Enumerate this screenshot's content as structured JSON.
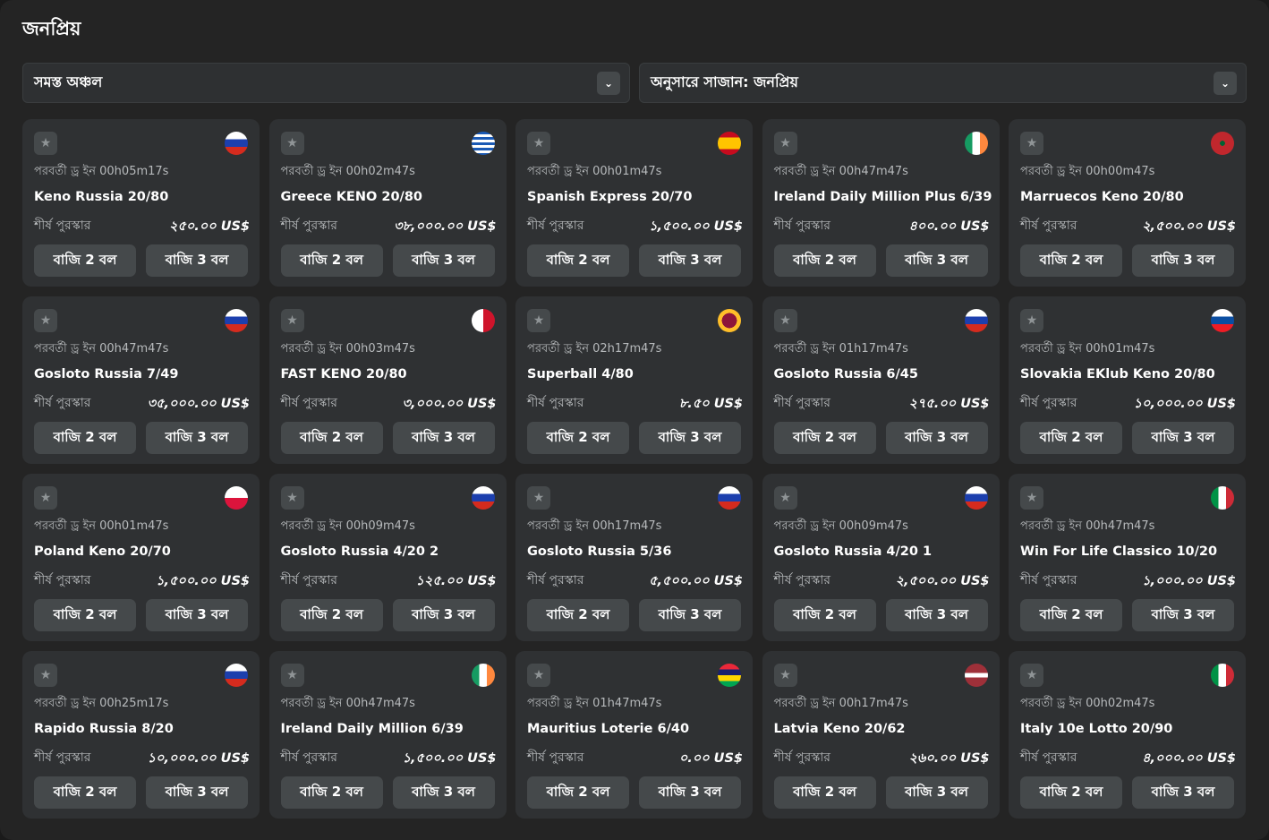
{
  "title": "জনপ্রিয়",
  "filters": {
    "region": "সমস্ত অঞ্চল",
    "sort": "অনুসারে সাজান: জনপ্রিয়"
  },
  "labels": {
    "next_draw": "পরবর্তী ড্র ইন",
    "top_prize": "শীর্ষ পুরস্কার",
    "bet2": "বাজি 2 বল",
    "bet3": "বাজি 3 বল"
  },
  "cards": [
    {
      "flag": "russia",
      "timer": "পরবর্তী ড্র ইন 00h05m17s",
      "name": "Keno Russia 20/80",
      "prize": "২৫০.০০ US$"
    },
    {
      "flag": "greece",
      "timer": "পরবর্তী ড্র ইন 00h02m47s",
      "name": "Greece KENO 20/80",
      "prize": "৩৮,০০০.০০ US$"
    },
    {
      "flag": "spain",
      "timer": "পরবর্তী ড্র ইন 00h01m47s",
      "name": "Spanish Express 20/70",
      "prize": "১,৫০০.০০ US$"
    },
    {
      "flag": "ireland",
      "timer": "পরবর্তী ড্র ইন 00h47m47s",
      "name": "Ireland Daily Million Plus 6/39",
      "prize": "৪০০.০০ US$"
    },
    {
      "flag": "morocco",
      "timer": "পরবর্তী ড্র ইন 00h00m47s",
      "name": "Marruecos Keno 20/80",
      "prize": "২,৫০০.০০ US$"
    },
    {
      "flag": "russia",
      "timer": "পরবর্তী ড্র ইন 00h47m47s",
      "name": "Gosloto Russia 7/49",
      "prize": "৩৫,০০০.০০ US$"
    },
    {
      "flag": "malta",
      "timer": "পরবর্তী ড্র ইন 00h03m47s",
      "name": "FAST KENO 20/80",
      "prize": "৩,০০০.০০ US$"
    },
    {
      "flag": "srilanka",
      "timer": "পরবর্তী ড্র ইন 02h17m47s",
      "name": "Superball 4/80",
      "prize": "৮.৫০ US$"
    },
    {
      "flag": "russia",
      "timer": "পরবর্তী ড্র ইন 01h17m47s",
      "name": "Gosloto Russia 6/45",
      "prize": "২৭৫.০০ US$"
    },
    {
      "flag": "slovakia",
      "timer": "পরবর্তী ড্র ইন 00h01m47s",
      "name": "Slovakia EKlub Keno 20/80",
      "prize": "১০,০০০.০০ US$"
    },
    {
      "flag": "poland",
      "timer": "পরবর্তী ড্র ইন 00h01m47s",
      "name": "Poland Keno 20/70",
      "prize": "১,৫০০.০০ US$"
    },
    {
      "flag": "russia",
      "timer": "পরবর্তী ড্র ইন 00h09m47s",
      "name": "Gosloto Russia 4/20 2",
      "prize": "১২৫.০০ US$"
    },
    {
      "flag": "russia",
      "timer": "পরবর্তী ড্র ইন 00h17m47s",
      "name": "Gosloto Russia 5/36",
      "prize": "৫,৫০০.০০ US$"
    },
    {
      "flag": "russia",
      "timer": "পরবর্তী ড্র ইন 00h09m47s",
      "name": "Gosloto Russia 4/20 1",
      "prize": "২,৫০০.০০ US$"
    },
    {
      "flag": "italy",
      "timer": "পরবর্তী ড্র ইন 00h47m47s",
      "name": "Win For Life Classico 10/20",
      "prize": "১,০০০.০০ US$"
    },
    {
      "flag": "russia",
      "timer": "পরবর্তী ড্র ইন 00h25m17s",
      "name": "Rapido Russia 8/20",
      "prize": "১০,০০০.০০ US$"
    },
    {
      "flag": "ireland",
      "timer": "পরবর্তী ড্র ইন 00h47m47s",
      "name": "Ireland Daily Million 6/39",
      "prize": "১,৫০০.০০ US$"
    },
    {
      "flag": "mauritius",
      "timer": "পরবর্তী ড্র ইন 01h47m47s",
      "name": "Mauritius Loterie 6/40",
      "prize": "০.০০ US$"
    },
    {
      "flag": "latvia",
      "timer": "পরবর্তী ড্র ইন 00h17m47s",
      "name": "Latvia Keno 20/62",
      "prize": "২৬০.০০ US$"
    },
    {
      "flag": "italy",
      "timer": "পরবর্তী ড্র ইন 00h02m47s",
      "name": "Italy 10e Lotto 20/90",
      "prize": "৪,০০০.০০ US$"
    }
  ]
}
